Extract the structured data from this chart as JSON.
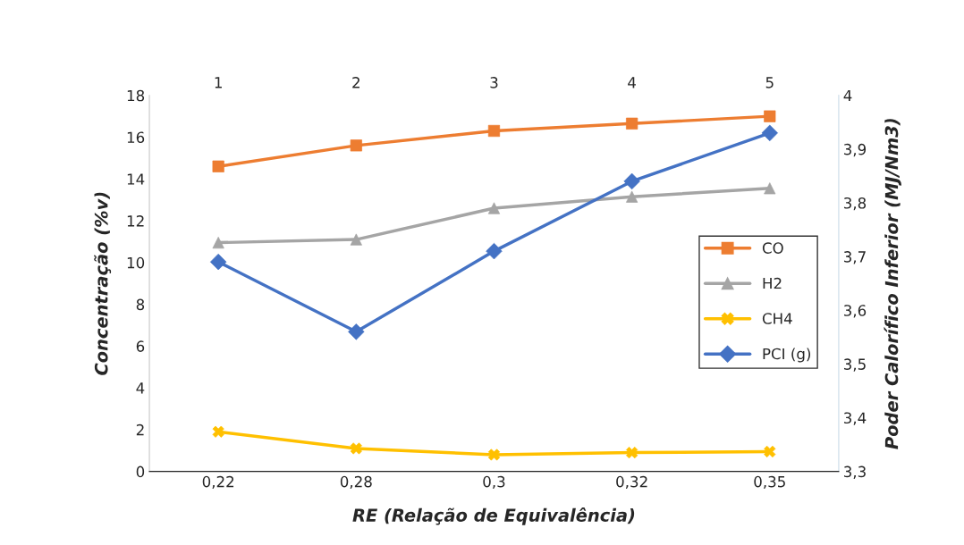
{
  "chart_data": {
    "type": "line",
    "xlabel": "RE (Relação de Equivalência)",
    "ylabel": "Concentração (%v)",
    "y2label": "Poder Calorífico Inferior (MJ/Nm3)",
    "categories": [
      "0,22",
      "0,28",
      "0,3",
      "0,32",
      "0,35"
    ],
    "x2lim": [
      0.5,
      5.5
    ],
    "x2ticks": [
      1,
      2,
      3,
      4,
      5
    ],
    "ylim": [
      0,
      18
    ],
    "yticks": [
      0,
      2,
      4,
      6,
      8,
      10,
      12,
      14,
      16,
      18
    ],
    "y2lim": [
      3.3,
      4
    ],
    "y2ticks": [
      {
        "value": 3.3,
        "label": "3,3"
      },
      {
        "value": 3.4,
        "label": "3,4"
      },
      {
        "value": 3.5,
        "label": "3,5"
      },
      {
        "value": 3.6,
        "label": "3,6"
      },
      {
        "value": 3.7,
        "label": "3,7"
      },
      {
        "value": 3.8,
        "label": "3,8"
      },
      {
        "value": 3.9,
        "label": "3,9"
      },
      {
        "value": 4,
        "label": "4"
      }
    ],
    "series": [
      {
        "name": "CO",
        "color": "#ed7d31",
        "marker": "square",
        "values": [
          14.6,
          15.6,
          16.3,
          16.65,
          17.0
        ]
      },
      {
        "name": "H2",
        "color": "#a5a5a5",
        "marker": "triangle",
        "values": [
          10.95,
          11.1,
          12.6,
          13.15,
          13.55
        ]
      },
      {
        "name": "CH4",
        "color": "#ffc000",
        "marker": "cross",
        "values": [
          1.9,
          1.1,
          0.8,
          0.9,
          0.95
        ]
      },
      {
        "name": "PCI (g)",
        "color": "#4472c4",
        "marker": "diamond",
        "axis": "y2",
        "values": [
          3.69,
          3.56,
          3.71,
          3.84,
          3.93
        ]
      }
    ],
    "grid": false,
    "legend": "right",
    "line_style": "solid"
  }
}
